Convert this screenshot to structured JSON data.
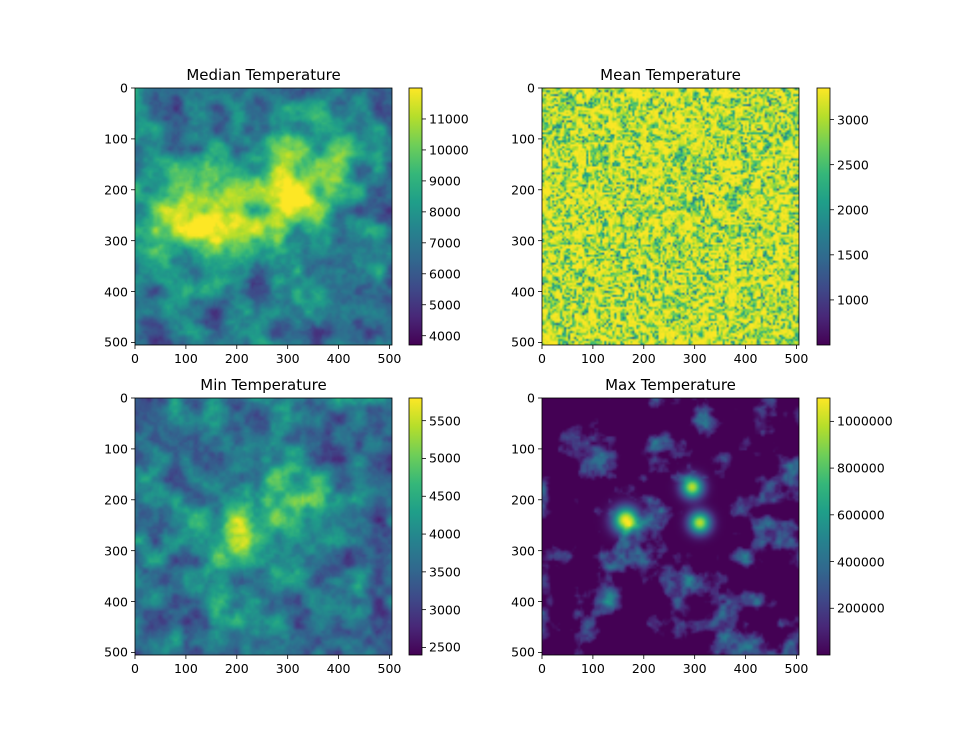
{
  "chart_data": [
    {
      "type": "heatmap",
      "title": "Median Temperature",
      "colormap": "viridis",
      "xlim": [
        0,
        505
      ],
      "ylim": [
        505,
        0
      ],
      "xticks": [
        0,
        100,
        200,
        300,
        400,
        500
      ],
      "yticks": [
        0,
        100,
        200,
        300,
        400,
        500
      ],
      "colorbar": {
        "min": 3700,
        "max": 12000,
        "ticks": [
          4000,
          5000,
          6000,
          7000,
          8000,
          9000,
          10000,
          11000
        ]
      },
      "field_seed": 11,
      "hotspots": [
        {
          "x": 110,
          "y": 250,
          "r": 70,
          "w": 0.5
        },
        {
          "x": 330,
          "y": 170,
          "r": 70,
          "w": 0.45
        },
        {
          "x": 300,
          "y": 230,
          "r": 40,
          "w": 0.3
        },
        {
          "x": 200,
          "y": 280,
          "r": 45,
          "w": 0.3
        }
      ]
    },
    {
      "type": "heatmap",
      "title": "Mean Temperature",
      "colormap": "viridis",
      "xlim": [
        0,
        505
      ],
      "ylim": [
        505,
        0
      ],
      "xticks": [
        0,
        100,
        200,
        300,
        400,
        500
      ],
      "yticks": [
        0,
        100,
        200,
        300,
        400,
        500
      ],
      "colorbar": {
        "min": 500,
        "max": 3350,
        "ticks": [
          1000,
          1500,
          2000,
          2500,
          3000
        ]
      },
      "field_seed": 23,
      "hotspots": []
    },
    {
      "type": "heatmap",
      "title": "Min Temperature",
      "colormap": "viridis",
      "xlim": [
        0,
        505
      ],
      "ylim": [
        505,
        0
      ],
      "xticks": [
        0,
        100,
        200,
        300,
        400,
        500
      ],
      "yticks": [
        0,
        100,
        200,
        300,
        400,
        500
      ],
      "colorbar": {
        "min": 2400,
        "max": 5800,
        "ticks": [
          2500,
          3000,
          3500,
          4000,
          4500,
          5000,
          5500
        ]
      },
      "field_seed": 37,
      "hotspots": [
        {
          "x": 200,
          "y": 280,
          "r": 60,
          "w": 0.4
        },
        {
          "x": 300,
          "y": 200,
          "r": 60,
          "w": 0.35
        }
      ]
    },
    {
      "type": "heatmap",
      "title": "Max Temperature",
      "colormap": "viridis",
      "xlim": [
        0,
        505
      ],
      "ylim": [
        505,
        0
      ],
      "xticks": [
        0,
        100,
        200,
        300,
        400,
        500
      ],
      "yticks": [
        0,
        100,
        200,
        300,
        400,
        500
      ],
      "colorbar": {
        "min": 0,
        "max": 1100000,
        "ticks": [
          200000,
          400000,
          600000,
          800000,
          1000000
        ]
      },
      "field_seed": 53,
      "hotspots": [
        {
          "x": 165,
          "y": 240,
          "r": 18,
          "w": 1.0
        },
        {
          "x": 295,
          "y": 175,
          "r": 15,
          "w": 0.9
        },
        {
          "x": 310,
          "y": 245,
          "r": 15,
          "w": 0.9
        }
      ]
    }
  ]
}
